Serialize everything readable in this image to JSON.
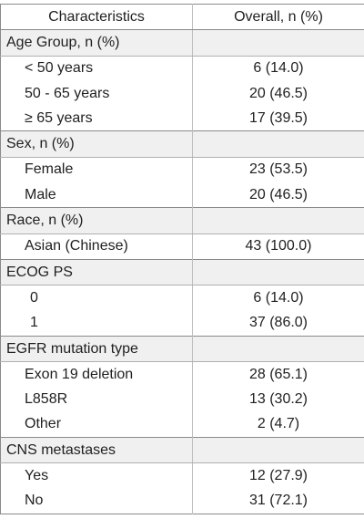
{
  "table": {
    "header": {
      "characteristics": "Characteristics",
      "overall": "Overall, n (%)"
    },
    "sections": [
      {
        "title": "Age Group, n (%)",
        "rows": [
          {
            "label": "< 50 years",
            "value": "6 (14.0)"
          },
          {
            "label": "50 - 65 years",
            "value": "20 (46.5)"
          },
          {
            "label": "≥ 65 years",
            "value": "17 (39.5)"
          }
        ]
      },
      {
        "title": "Sex, n (%)",
        "rows": [
          {
            "label": "Female",
            "value": "23 (53.5)"
          },
          {
            "label": "Male",
            "value": "20 (46.5)"
          }
        ]
      },
      {
        "title": "Race, n (%)",
        "rows": [
          {
            "label": "Asian (Chinese)",
            "value": "43 (100.0)"
          }
        ]
      },
      {
        "title": "ECOG PS",
        "rows": [
          {
            "label": "0",
            "value": "6 (14.0)"
          },
          {
            "label": "1",
            "value": "37 (86.0)"
          }
        ]
      },
      {
        "title": "EGFR mutation type",
        "rows": [
          {
            "label": "Exon 19 deletion",
            "value": "28 (65.1)"
          },
          {
            "label": "L858R",
            "value": "13 (30.2)"
          },
          {
            "label": "Other",
            "value": "2 (4.7)"
          }
        ]
      },
      {
        "title": "CNS metastases",
        "rows": [
          {
            "label": "Yes",
            "value": "12 (27.9)"
          },
          {
            "label": "No",
            "value": "31 (72.1)"
          }
        ]
      }
    ]
  }
}
